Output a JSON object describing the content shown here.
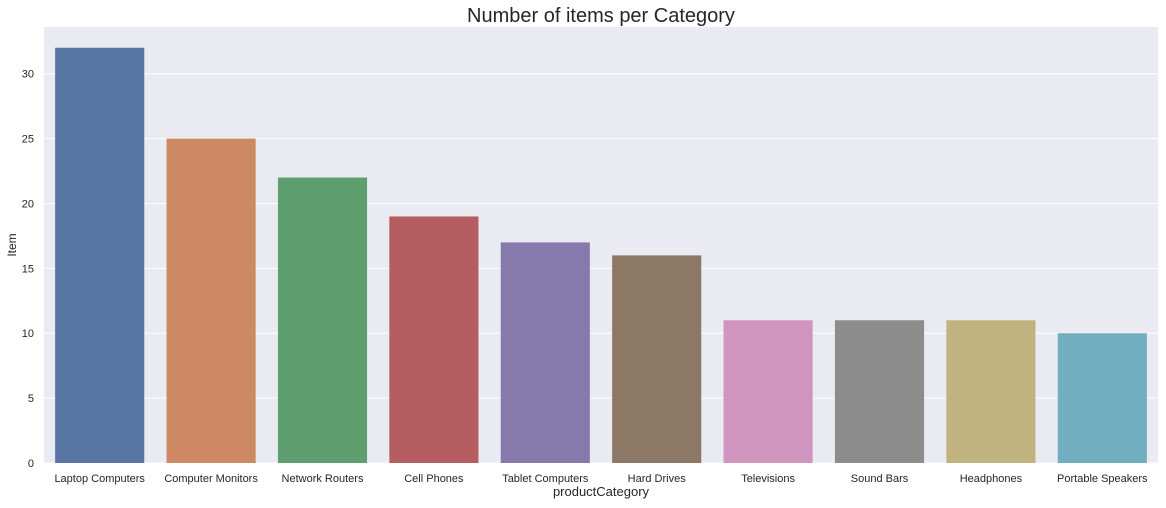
{
  "chart_data": {
    "type": "bar",
    "title": "Number of items per Category",
    "xlabel": "productCategory",
    "ylabel": "Item",
    "categories": [
      "Laptop Computers",
      "Computer Monitors",
      "Network Routers",
      "Cell Phones",
      "Tablet Computers",
      "Hard Drives",
      "Televisions",
      "Sound Bars",
      "Headphones",
      "Portable Speakers"
    ],
    "values": [
      32,
      25,
      22,
      19,
      17,
      16,
      11,
      11,
      11,
      10
    ],
    "colors": [
      "#5875a4",
      "#cc8963",
      "#5f9e6e",
      "#b55d60",
      "#857aab",
      "#8d7866",
      "#d095bf",
      "#8c8c8c",
      "#c1b37f",
      "#71aec0"
    ],
    "ylim": [
      0,
      33.6
    ],
    "yticks": [
      0,
      5,
      10,
      15,
      20,
      25,
      30
    ],
    "grid": true,
    "background_color": "#eaeaf2",
    "grid_color": "#ffffff"
  }
}
